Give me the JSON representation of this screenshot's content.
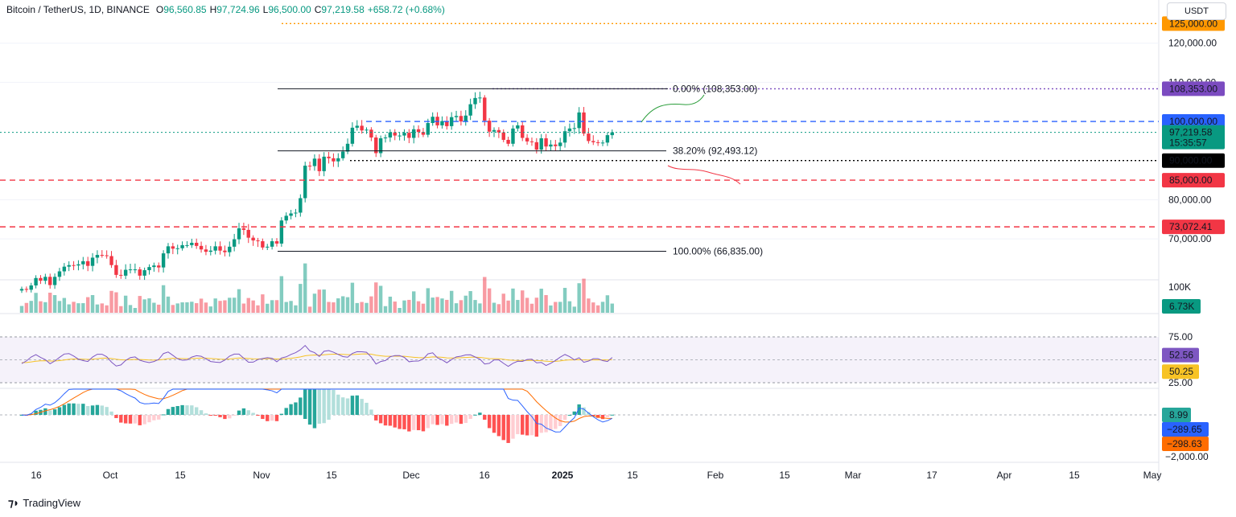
{
  "header": {
    "symbol": "Bitcoin / TetherUS, 1D, BINANCE",
    "open_k": "O",
    "open_v": "96,560.85",
    "high_k": "H",
    "high_v": "97,724.96",
    "low_k": "L",
    "low_v": "96,500.00",
    "close_k": "C",
    "close_v": "97,219.58",
    "change": "+658.72 (+0.68%)"
  },
  "currency": "USDT",
  "brand": "TradingView",
  "colors": {
    "up": "#089981",
    "down": "#f23645",
    "accent": "#2962ff",
    "orange": "#ff9800"
  },
  "price_axis": {
    "ticks": [
      "120,000.00",
      "110,000.00",
      "80,000.00",
      "70,000.00"
    ],
    "ylim": [
      64000,
      128000
    ],
    "badges": [
      {
        "text": "125,000.00",
        "value": 125000,
        "color": "#ff9800",
        "style": "dotted"
      },
      {
        "text": "108,353.00",
        "value": 108353,
        "color": "#7b4bc0",
        "style": "dotted"
      },
      {
        "text": "100,000.00",
        "value": 100000,
        "color": "#2962ff",
        "style": "dashed"
      },
      {
        "text": "97,219.58",
        "value": 97219.58,
        "color": "#089981",
        "style": "dotted",
        "sub": "15:35:57"
      },
      {
        "text": "90,000.00",
        "value": 90000,
        "color": "#000000",
        "style": "dotted"
      },
      {
        "text": "85,000.00",
        "value": 85000,
        "color": "#f23645",
        "style": "dashed"
      },
      {
        "text": "73,072.41",
        "value": 73072.41,
        "color": "#f23645",
        "style": "dashed"
      }
    ]
  },
  "fib": [
    {
      "text": "0.00% (108,353.00)",
      "value": 108353
    },
    {
      "text": "38.20% (92,493.12)",
      "value": 92493.12
    },
    {
      "text": "100.00% (66,835.00)",
      "value": 66835
    }
  ],
  "volume": {
    "tick": "100K",
    "value_label": "6.73K"
  },
  "rsi": {
    "ticks": [
      "75.00",
      "25.00"
    ],
    "rsi_label": "52.56",
    "ma_label": "50.25",
    "rsi": 52.56,
    "ma": 50.25
  },
  "macd": {
    "ticks": [
      "−2,000.00"
    ],
    "hist_label": "8.99",
    "macd_label": "−289.65",
    "signal_label": "−298.63"
  },
  "x_axis": [
    "16",
    "Oct",
    "15",
    "Nov",
    "15",
    "Dec",
    "16",
    "2025",
    "15",
    "Feb",
    "15",
    "Mar",
    "17",
    "Apr",
    "15",
    "May"
  ],
  "chart_data": {
    "type": "candlestick",
    "title": "Bitcoin / TetherUS, 1D, BINANCE",
    "start_date": "2024-09-10",
    "end_date": "2025-01-14",
    "closes": [
      57200,
      57000,
      58100,
      60000,
      59300,
      60300,
      58200,
      60300,
      61700,
      62900,
      63300,
      63200,
      63500,
      64300,
      63100,
      65200,
      65900,
      65800,
      65600,
      63300,
      60800,
      60600,
      62100,
      62200,
      62200,
      60600,
      62000,
      62800,
      63200,
      62700,
      66300,
      68100,
      67500,
      67600,
      68400,
      68400,
      69000,
      68200,
      67300,
      66700,
      67000,
      68100,
      67000,
      66600,
      68000,
      69900,
      72700,
      72300,
      70300,
      69600,
      69400,
      67800,
      68000,
      69400,
      68800,
      74700,
      75900,
      76500,
      76700,
      80400,
      88700,
      88600,
      90500,
      87300,
      91000,
      90600,
      89800,
      90600,
      92300,
      94300,
      98400,
      98900,
      97700,
      97900,
      95900,
      91900,
      95700,
      95900,
      97200,
      96400,
      96400,
      97100,
      95800,
      98000,
      97300,
      96600,
      99600,
      101200,
      99000,
      100100,
      98800,
      101100,
      101400,
      100000,
      101500,
      104400,
      106000,
      106100,
      100200,
      97400,
      97800,
      97200,
      95300,
      94300,
      98200,
      99000,
      95800,
      94900,
      94700,
      92800,
      95700,
      93600,
      94100,
      93700,
      94600,
      97500,
      98200,
      98300,
      102300,
      96900,
      95000,
      94700,
      94500,
      94600,
      96500,
      97220
    ],
    "volume_unit": "BTC",
    "rsi_value": 52.56,
    "rsi_ma_value": 50.25,
    "macd_hist": 8.99,
    "macd": -289.65,
    "macd_signal": -298.63
  }
}
